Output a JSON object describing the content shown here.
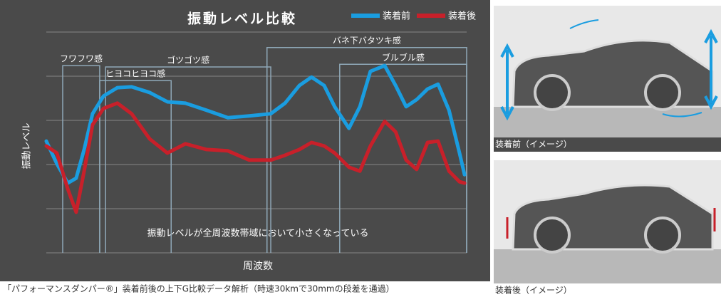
{
  "chart_data": {
    "type": "line",
    "title": "振動レベル比較",
    "y_label": "振動レベル",
    "x_label": "周波数",
    "annotation": "振動レベルが全周波数帯域において小さくなっている",
    "caption": "「パフォーマンスダンパー®」装着前後の上下G比較データ解析（時速30kmで30mmの段差を通過）",
    "x": [
      0,
      2.5,
      5.1,
      7.1,
      9.0,
      11.0,
      13.6,
      16.9,
      20.3,
      24.6,
      28.8,
      33.1,
      38.1,
      43.2,
      48.3,
      53.4,
      56.8,
      60.2,
      63.1,
      66.1,
      68.6,
      72.0,
      74.6,
      77.1,
      80.5,
      83.1,
      85.6,
      88.1,
      90.7,
      93.2,
      95.8,
      98.3,
      99.5
    ],
    "series": [
      {
        "name": "装着前",
        "color": "#1a9de0",
        "values": [
          2.53,
          2.02,
          1.58,
          1.69,
          2.34,
          3.15,
          3.55,
          3.74,
          3.76,
          3.63,
          3.42,
          3.39,
          3.23,
          3.06,
          3.1,
          3.15,
          3.39,
          3.79,
          3.98,
          3.79,
          3.31,
          2.82,
          3.31,
          4.11,
          4.24,
          3.79,
          3.31,
          3.47,
          3.71,
          3.82,
          3.23,
          2.26,
          1.77
        ]
      },
      {
        "name": "装着後",
        "color": "#c8202a",
        "values": [
          2.42,
          2.26,
          1.45,
          0.92,
          1.85,
          2.9,
          3.27,
          3.39,
          3.15,
          2.58,
          2.26,
          2.47,
          2.34,
          2.31,
          2.1,
          2.1,
          2.21,
          2.34,
          2.5,
          2.42,
          2.26,
          1.94,
          1.85,
          2.42,
          2.98,
          2.74,
          2.1,
          1.89,
          2.5,
          2.53,
          1.85,
          1.61,
          1.58
        ]
      }
    ],
    "xlim": [
      0,
      100
    ],
    "ylim": [
      0,
      5
    ],
    "yticks": [
      0,
      1,
      2,
      3,
      4,
      5
    ],
    "grid": true,
    "bands": [
      {
        "label": "フワフワ感",
        "x0": 3.9,
        "x1": 12.7,
        "top": 4.24
      },
      {
        "label": "ヒヨコヒヨコ感",
        "x0": 12.7,
        "x1": 29.7,
        "top": 3.9
      },
      {
        "label": "ゴツゴツ感",
        "x0": 14.1,
        "x1": 53.4,
        "top": 4.21
      },
      {
        "label": "バネ下バタツキ感",
        "x0": 52.5,
        "x1": 100,
        "top": 4.65
      },
      {
        "label": "ブルブル感",
        "x0": 69.8,
        "x1": 100,
        "top": 4.27
      }
    ]
  },
  "images": [
    {
      "caption": "装着前（イメージ）"
    },
    {
      "caption": "装着後（イメージ）"
    }
  ]
}
